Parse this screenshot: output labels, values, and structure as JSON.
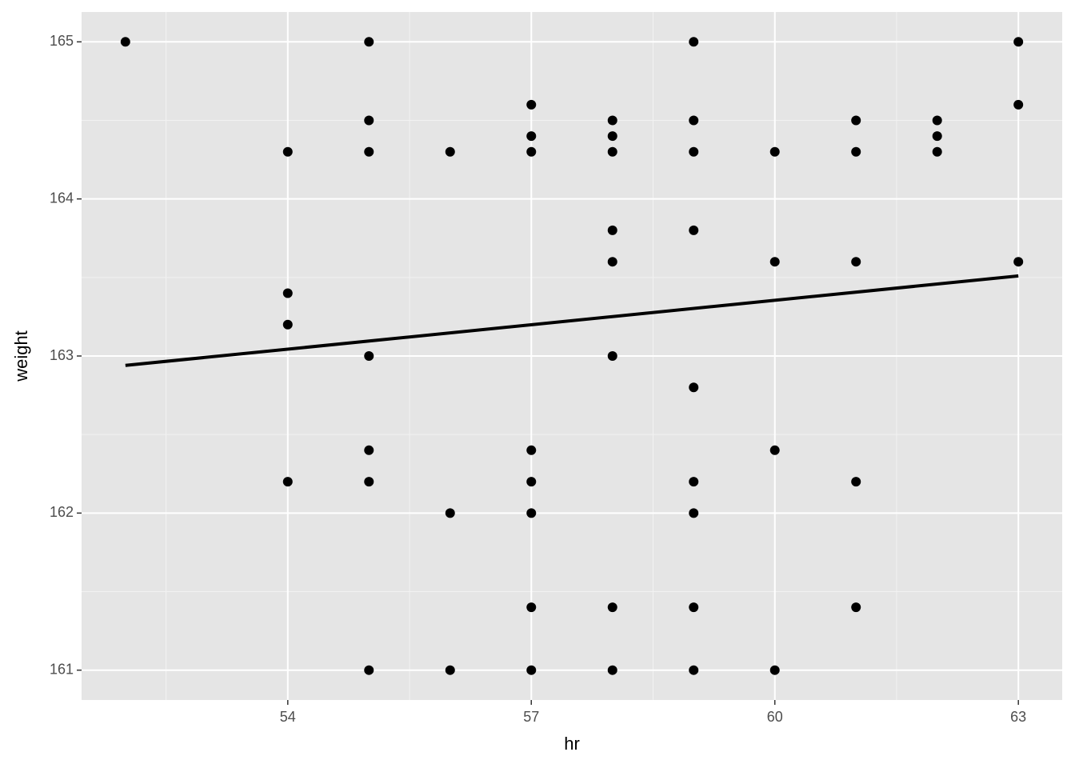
{
  "chart_data": {
    "type": "scatter",
    "x_label": "hr",
    "y_label": "weight",
    "x": [
      52,
      54,
      54,
      54,
      54,
      55,
      55,
      55,
      55,
      55,
      55,
      55,
      56,
      56,
      56,
      57,
      57,
      57,
      57,
      57,
      57,
      57,
      57,
      58,
      58,
      58,
      58,
      58,
      58,
      58,
      58,
      59,
      59,
      59,
      59,
      59,
      59,
      59,
      59,
      59,
      60,
      60,
      60,
      60,
      61,
      61,
      61,
      61,
      61,
      62,
      62,
      62,
      63,
      63,
      63
    ],
    "y": [
      165,
      164.3,
      163.4,
      163.2,
      162.2,
      165,
      164.5,
      164.3,
      163,
      162.4,
      162.2,
      161,
      164.3,
      162,
      161,
      164.6,
      164.4,
      164.3,
      162.4,
      162.2,
      162,
      161.4,
      161,
      164.5,
      164.4,
      164.3,
      163.8,
      163.6,
      163,
      161.4,
      161,
      165,
      164.5,
      164.3,
      163.8,
      162.8,
      162.2,
      162,
      161.4,
      161,
      164.3,
      163.6,
      162.4,
      161,
      164.5,
      164.3,
      163.6,
      162.2,
      161.4,
      164.5,
      164.4,
      164.3,
      165,
      164.6,
      163.6
    ],
    "color": "#000000",
    "trend": {
      "x": [
        52,
        63
      ],
      "y": [
        162.94,
        163.51
      ],
      "color": "#000000"
    },
    "xlim": [
      51.46,
      63.54
    ],
    "ylim": [
      160.81,
      165.19
    ],
    "xticks": [
      54,
      57,
      60,
      63
    ],
    "yticks": [
      161,
      162,
      163,
      164,
      165
    ],
    "xminor": [
      52.5,
      55.5,
      58.5,
      61.5
    ],
    "yminor": [
      161.5,
      162.5,
      163.5,
      164.5
    ],
    "grid": true
  }
}
